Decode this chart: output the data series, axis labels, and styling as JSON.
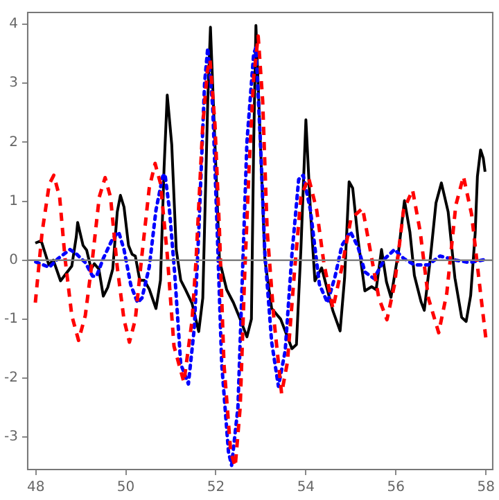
{
  "chart_data": {
    "type": "line",
    "xlim": [
      47.82,
      58.15
    ],
    "ylim": [
      -3.55,
      4.2
    ],
    "xticks": [
      48,
      50,
      52,
      54,
      56,
      58
    ],
    "yticks": [
      -3,
      -2,
      -1,
      0,
      1,
      2,
      3,
      4
    ],
    "grid": false,
    "legend": false,
    "marker": "none",
    "ref_lines": [
      {
        "axis": "y",
        "value": 0,
        "color": "#808080"
      }
    ],
    "series": [
      {
        "color": "#ff0000",
        "line_style": "dashed",
        "x": [
          47.99,
          48.14,
          48.3,
          48.4,
          48.53,
          48.65,
          48.8,
          48.95,
          49.1,
          49.26,
          49.41,
          49.54,
          49.66,
          49.81,
          49.96,
          50.08,
          50.21,
          50.36,
          50.52,
          50.65,
          50.77,
          50.92,
          51.07,
          51.29,
          51.47,
          51.56,
          51.71,
          51.81,
          51.87,
          51.98,
          52.08,
          52.18,
          52.33,
          52.43,
          52.54,
          52.64,
          52.74,
          52.84,
          52.94,
          53.04,
          53.14,
          53.29,
          53.46,
          53.59,
          53.74,
          53.89,
          54.06,
          54.24,
          54.4,
          54.6,
          54.8,
          55.0,
          55.26,
          55.41,
          55.62,
          55.8,
          55.97,
          56.17,
          56.37,
          56.54,
          56.72,
          56.95,
          57.13,
          57.33,
          57.5,
          57.68,
          57.88,
          58.0
        ],
        "values": [
          -0.72,
          0.47,
          1.29,
          1.44,
          1.07,
          0.03,
          -0.94,
          -1.36,
          -0.94,
          0.03,
          1.07,
          1.4,
          1.07,
          -0.12,
          -1.01,
          -1.39,
          -1.01,
          0.1,
          1.22,
          1.64,
          1.3,
          0.1,
          -1.46,
          -2.07,
          -1.03,
          0,
          2.3,
          3.2,
          3.4,
          2.3,
          0.5,
          -1.76,
          -3.25,
          -3.5,
          -2.5,
          -0.26,
          1.6,
          3.1,
          3.8,
          2.7,
          0.5,
          -1.0,
          -2.26,
          -1.73,
          -0.26,
          1.07,
          1.4,
          0.85,
          -0.05,
          -0.82,
          -0.12,
          0.7,
          0.88,
          0.25,
          -0.64,
          -1.01,
          -0.41,
          0.85,
          1.19,
          0.48,
          -0.64,
          -1.23,
          -0.56,
          0.93,
          1.42,
          0.78,
          -0.56,
          -1.34
        ]
      },
      {
        "color": "#0000ff",
        "line_style": "dotted",
        "x": [
          48.0,
          48.3,
          48.5,
          48.76,
          48.91,
          49.1,
          49.26,
          49.35,
          49.5,
          49.71,
          49.84,
          49.96,
          50.11,
          50.26,
          50.36,
          50.52,
          50.67,
          50.82,
          50.87,
          50.97,
          51.09,
          51.22,
          51.39,
          51.52,
          51.62,
          51.75,
          51.82,
          51.93,
          52.03,
          52.13,
          52.28,
          52.35,
          52.49,
          52.59,
          52.69,
          52.84,
          52.89,
          52.99,
          53.09,
          53.24,
          53.39,
          53.54,
          53.69,
          53.84,
          53.94,
          54.1,
          54.3,
          54.48,
          54.65,
          54.8,
          54.99,
          55.16,
          55.31,
          55.51,
          55.76,
          55.97,
          56.17,
          56.41,
          56.72,
          56.98,
          57.33,
          57.63,
          57.98
        ],
        "values": [
          -0.03,
          -0.12,
          0.03,
          0.18,
          0.1,
          -0.04,
          -0.27,
          -0.27,
          0.03,
          0.37,
          0.48,
          0.18,
          -0.42,
          -0.72,
          -0.64,
          -0.12,
          0.85,
          1.42,
          1.46,
          0.85,
          -0.27,
          -1.76,
          -2.1,
          -1.16,
          0.48,
          3.0,
          3.6,
          2.6,
          0.5,
          -1.76,
          -3.25,
          -3.48,
          -2.5,
          -0.26,
          2.0,
          3.5,
          3.6,
          2.0,
          0.1,
          -1.39,
          -2.14,
          -1.54,
          0.1,
          1.37,
          1.44,
          0.85,
          -0.41,
          -0.72,
          -0.27,
          0.25,
          0.48,
          0.22,
          -0.2,
          -0.31,
          0.03,
          0.18,
          0.03,
          -0.08,
          -0.08,
          0.07,
          0,
          -0.04,
          0.01
        ]
      },
      {
        "color": "#000000",
        "line_style": "solid",
        "x": [
          47.99,
          48.12,
          48.29,
          48.39,
          48.55,
          48.7,
          48.8,
          48.9,
          48.93,
          49.05,
          49.13,
          49.23,
          49.3,
          49.4,
          49.5,
          49.6,
          49.71,
          49.81,
          49.88,
          49.96,
          50.06,
          50.14,
          50.21,
          50.31,
          50.41,
          50.52,
          50.67,
          50.77,
          50.85,
          50.92,
          51.02,
          51.12,
          51.22,
          51.32,
          51.47,
          51.62,
          51.71,
          51.82,
          51.88,
          51.98,
          52.08,
          52.24,
          52.39,
          52.54,
          52.69,
          52.79,
          52.84,
          52.89,
          52.99,
          53.09,
          53.24,
          53.44,
          53.69,
          53.79,
          53.89,
          54.0,
          54.1,
          54.2,
          54.35,
          54.45,
          54.6,
          54.76,
          54.86,
          54.96,
          55.04,
          55.16,
          55.31,
          55.46,
          55.56,
          55.68,
          55.79,
          55.89,
          56.06,
          56.19,
          56.31,
          56.41,
          56.56,
          56.63,
          56.76,
          56.89,
          57.01,
          57.16,
          57.31,
          57.46,
          57.56,
          57.66,
          57.76,
          57.81,
          57.88,
          57.94,
          57.98
        ],
        "values": [
          0.29,
          0.33,
          -0.08,
          0,
          -0.35,
          -0.2,
          -0.1,
          0.4,
          0.64,
          0.25,
          0.17,
          -0.15,
          -0.06,
          -0.15,
          -0.61,
          -0.46,
          -0.15,
          0.82,
          1.1,
          0.9,
          0.25,
          0.1,
          0.07,
          -0.34,
          -0.34,
          -0.49,
          -0.82,
          -0.34,
          1.57,
          2.8,
          1.96,
          0.18,
          -0.34,
          -0.49,
          -0.73,
          -1.21,
          -0.64,
          2.7,
          3.95,
          1.97,
          0,
          -0.5,
          -0.72,
          -1.0,
          -1.3,
          -1.0,
          1.97,
          3.98,
          1.97,
          0,
          -0.82,
          -1.0,
          -1.5,
          -1.43,
          0.2,
          2.38,
          0.85,
          -0.35,
          -0.13,
          -0.42,
          -0.86,
          -1.2,
          -0.3,
          1.33,
          1.22,
          0.34,
          -0.52,
          -0.45,
          -0.5,
          0.18,
          -0.37,
          -0.63,
          0.16,
          1.01,
          0.48,
          -0.26,
          -0.71,
          -0.85,
          0,
          0.97,
          1.31,
          0.82,
          -0.3,
          -0.97,
          -1.04,
          -0.6,
          0.45,
          1.42,
          1.87,
          1.73,
          1.5
        ]
      }
    ]
  }
}
